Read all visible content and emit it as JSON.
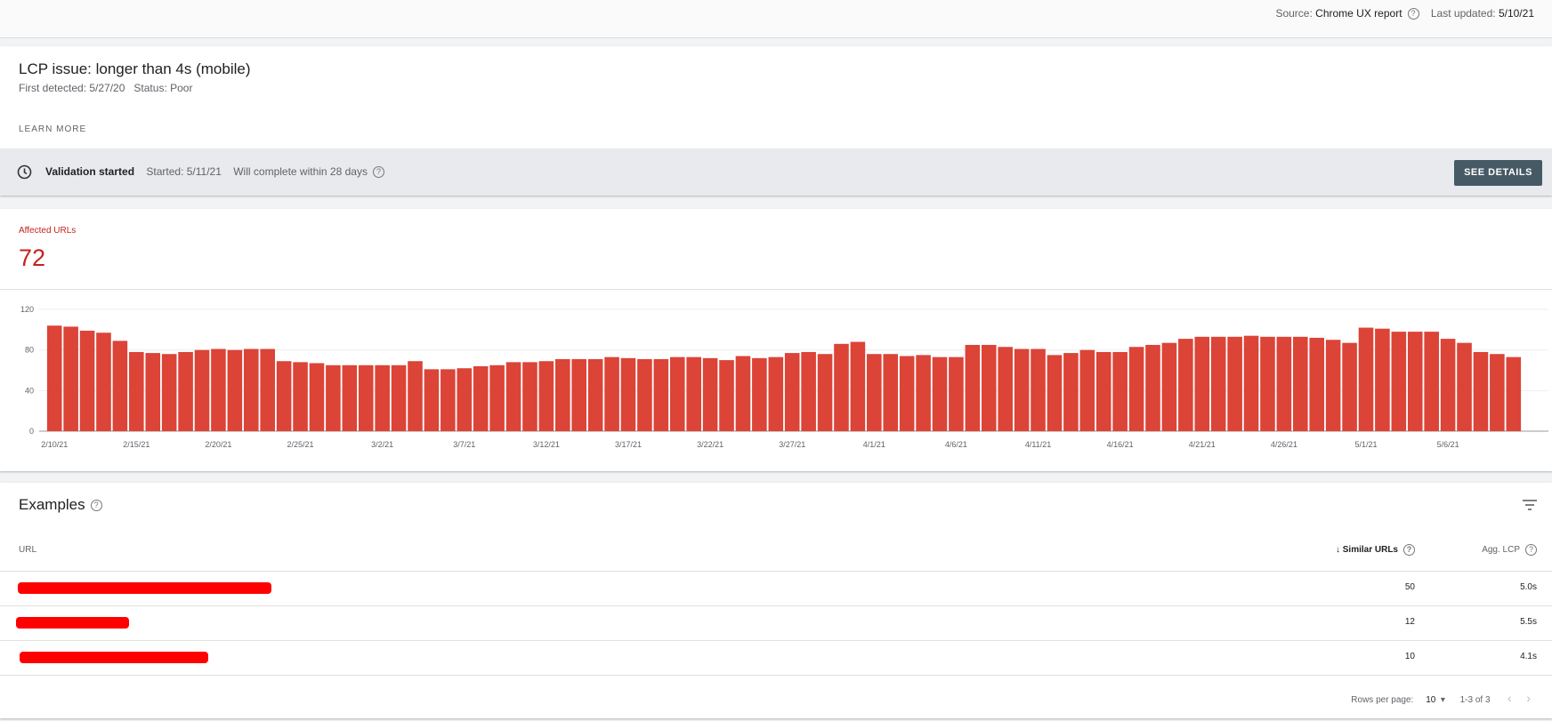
{
  "header": {
    "source_label": "Source:",
    "source": "Chrome UX report",
    "updated_label": "Last updated:",
    "updated": "5/10/21"
  },
  "issue": {
    "title": "LCP issue: longer than 4s (mobile)",
    "first_detected": "First detected: 5/27/20",
    "status": "Status: Poor",
    "learn_more": "LEARN MORE",
    "validation": {
      "label": "Validation started",
      "started": "Started: 5/11/21",
      "complete": "Will complete within 28 days",
      "button": "SEE DETAILS"
    }
  },
  "affected": {
    "label": "Affected URLs",
    "value": 72
  },
  "chart_data": {
    "type": "bar",
    "color": "#db4437",
    "grid": true,
    "ylim": [
      0,
      120
    ],
    "yticks": [
      0,
      40,
      80,
      120
    ],
    "categories": [
      "2/10/21",
      null,
      null,
      null,
      null,
      "2/15/21",
      null,
      null,
      null,
      null,
      "2/20/21",
      null,
      null,
      null,
      null,
      "2/25/21",
      null,
      null,
      null,
      null,
      "3/2/21",
      null,
      null,
      null,
      null,
      "3/7/21",
      null,
      null,
      null,
      null,
      "3/12/21",
      null,
      null,
      null,
      null,
      "3/17/21",
      null,
      null,
      null,
      null,
      "3/22/21",
      null,
      null,
      null,
      null,
      "3/27/21",
      null,
      null,
      null,
      null,
      "4/1/21",
      null,
      null,
      null,
      null,
      "4/6/21",
      null,
      null,
      null,
      null,
      "4/11/21",
      null,
      null,
      null,
      null,
      "4/16/21",
      null,
      null,
      null,
      null,
      "4/21/21",
      null,
      null,
      null,
      null,
      "4/26/21",
      null,
      null,
      null,
      null,
      "5/1/21",
      null,
      null,
      null,
      null,
      "5/6/21",
      null,
      null,
      null,
      null
    ],
    "values": [
      104,
      103,
      99,
      97,
      89,
      78,
      77,
      76,
      78,
      80,
      81,
      80,
      81,
      81,
      69,
      68,
      67,
      65,
      65,
      65,
      65,
      65,
      69,
      61,
      61,
      62,
      64,
      65,
      68,
      68,
      69,
      71,
      71,
      71,
      73,
      72,
      71,
      71,
      73,
      73,
      72,
      70,
      74,
      72,
      73,
      77,
      78,
      76,
      86,
      88,
      76,
      76,
      74,
      75,
      73,
      73,
      85,
      85,
      83,
      81,
      81,
      75,
      77,
      80,
      78,
      78,
      83,
      85,
      87,
      91,
      93,
      93,
      93,
      94,
      93,
      93,
      93,
      92,
      90,
      87,
      102,
      101,
      98,
      98,
      98,
      91,
      87,
      78,
      76,
      73
    ]
  },
  "examples": {
    "title": "Examples",
    "columns": [
      "URL",
      "Similar URLs",
      "Agg. LCP"
    ],
    "rows": [
      {
        "similar": 50,
        "agg_lcp": "5.0s"
      },
      {
        "similar": 12,
        "agg_lcp": "5.5s"
      },
      {
        "similar": 10,
        "agg_lcp": "4.1s"
      }
    ],
    "rows_per_page_label": "Rows per page:",
    "rows_per_page": 10,
    "range": "1-3 of 3"
  }
}
